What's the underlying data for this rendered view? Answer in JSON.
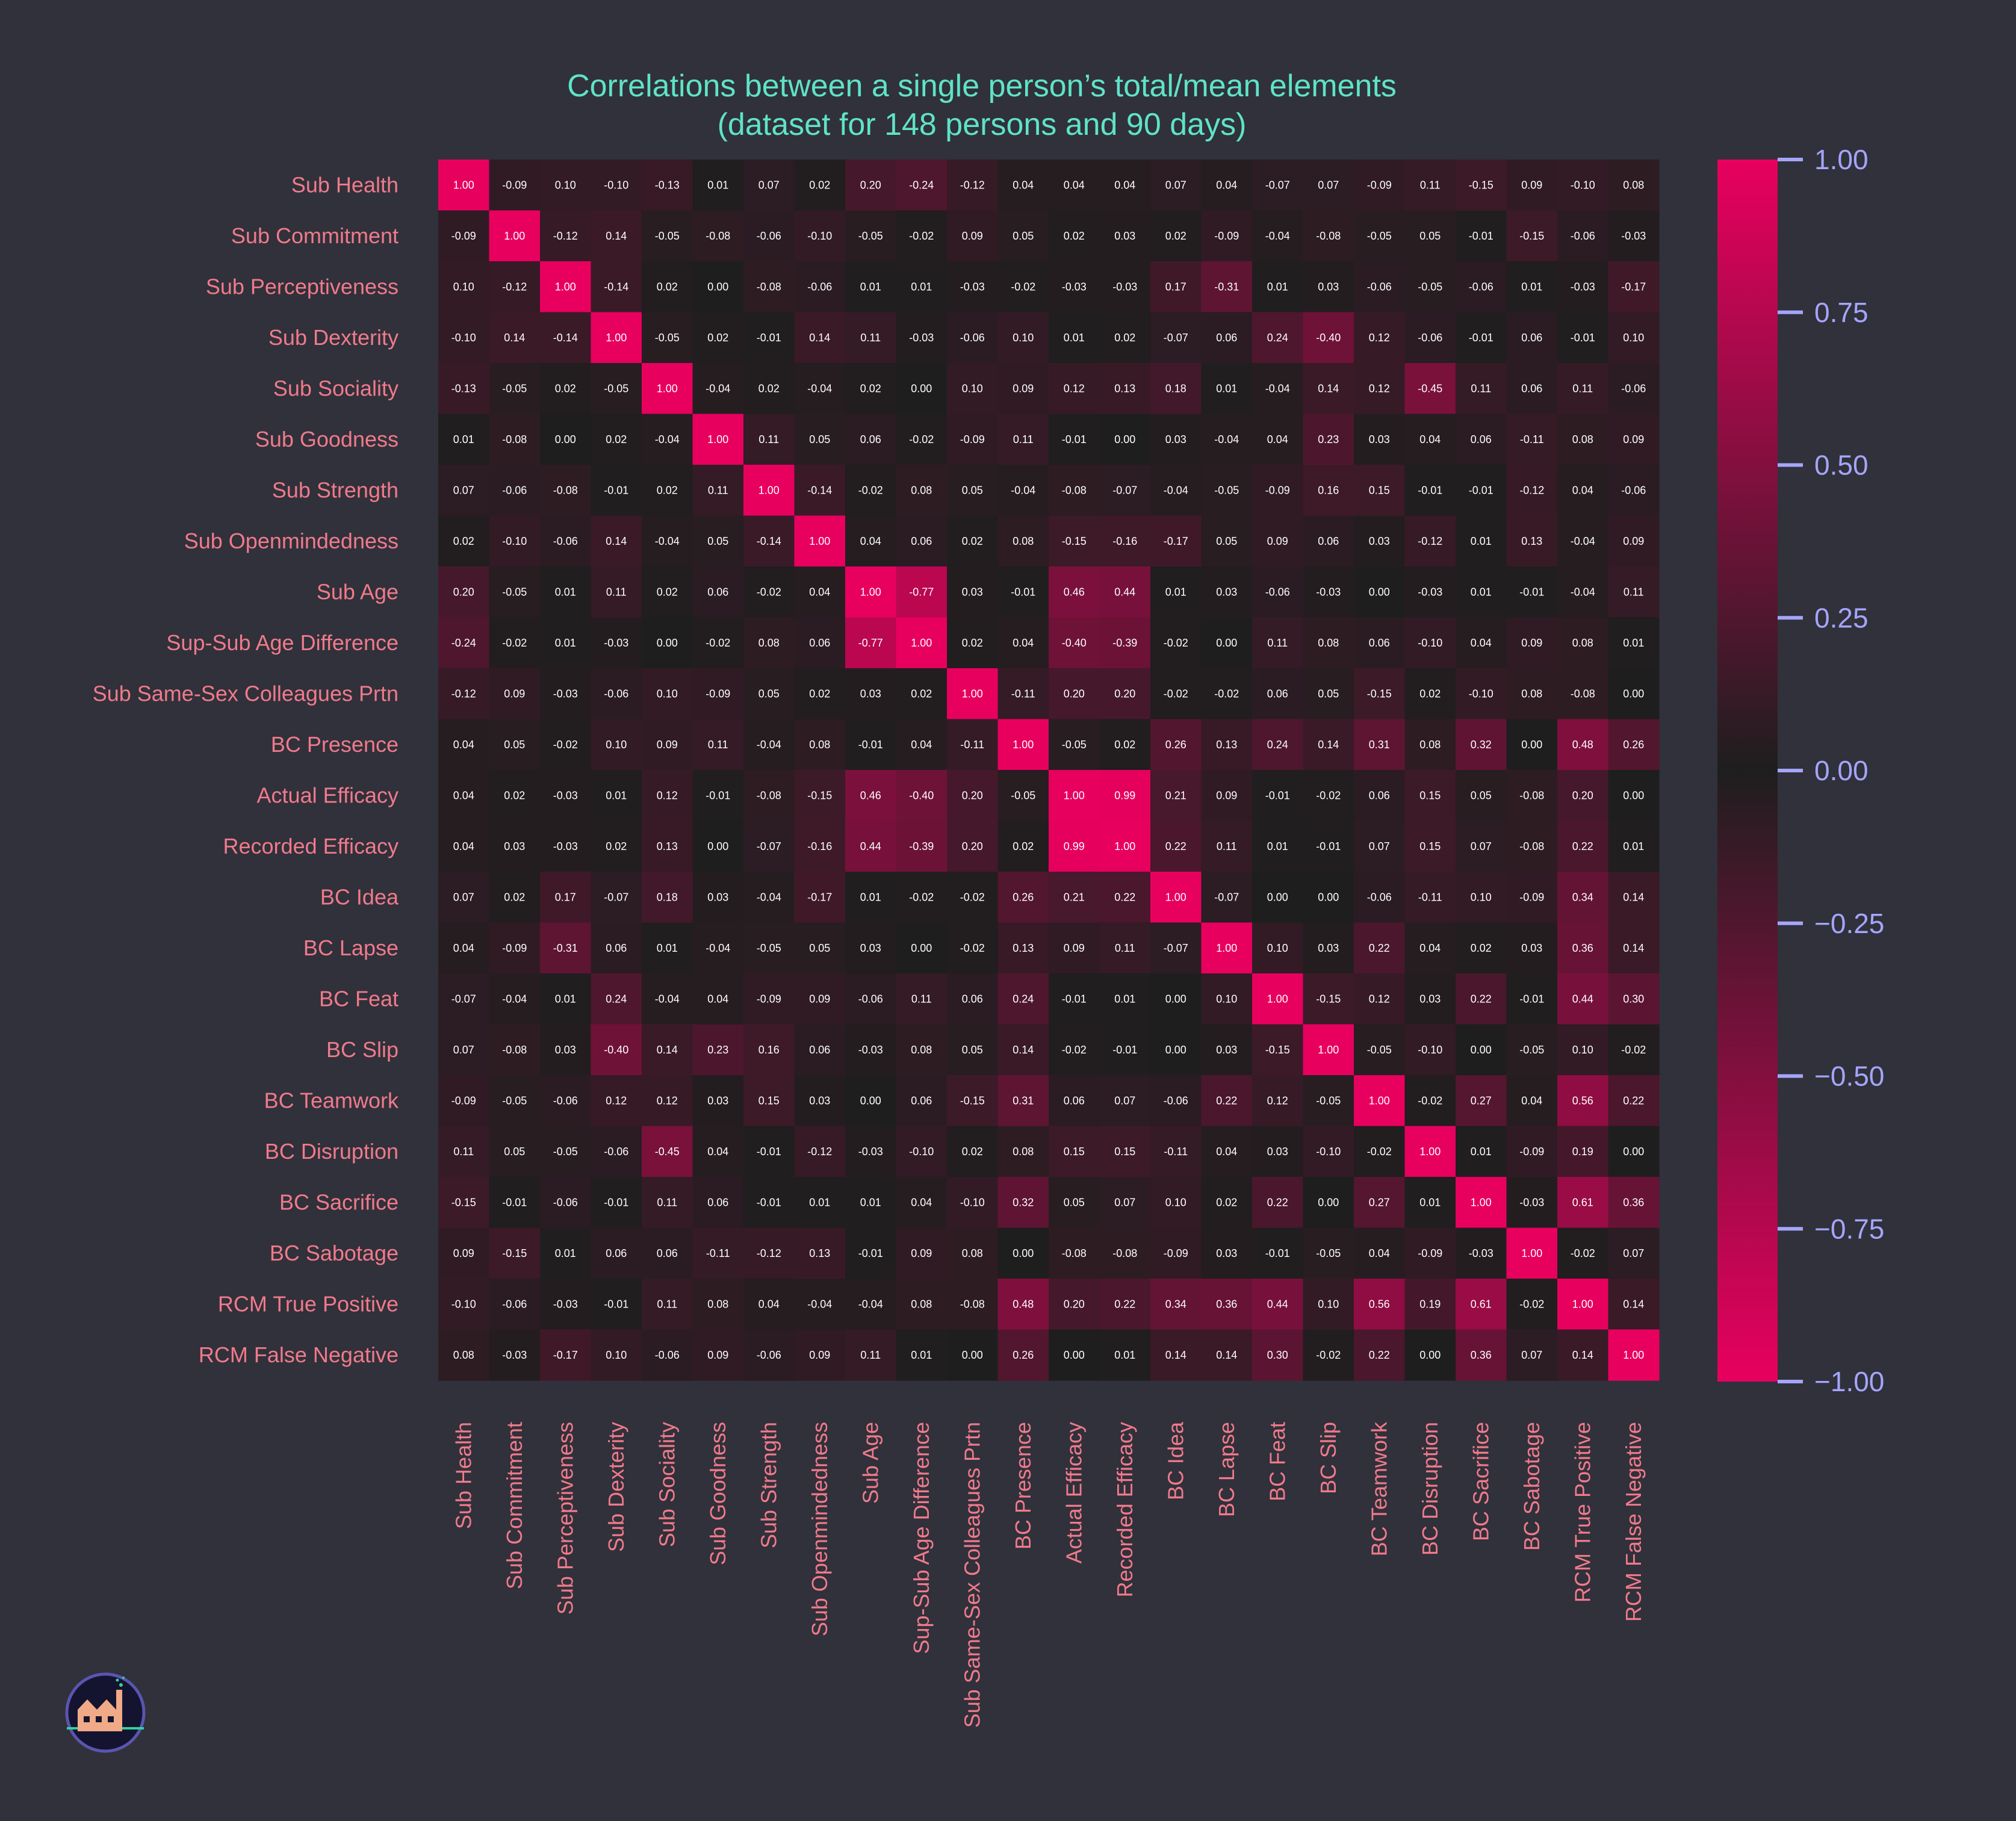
{
  "chart_data": {
    "type": "heatmap",
    "title": "Correlations between a single person’s total/mean elements",
    "subtitle": "(dataset for 148 persons and 90 days)",
    "labels": [
      "Sub Health",
      "Sub Commitment",
      "Sub Perceptiveness",
      "Sub Dexterity",
      "Sub Sociality",
      "Sub Goodness",
      "Sub Strength",
      "Sub Openmindedness",
      "Sub Age",
      "Sup-Sub Age Difference",
      "Sub Same-Sex Colleagues Prtn",
      "BC Presence",
      "Actual Efficacy",
      "Recorded Efficacy",
      "BC Idea",
      "BC Lapse",
      "BC Feat",
      "BC Slip",
      "BC Teamwork",
      "BC Disruption",
      "BC Sacrifice",
      "BC Sabotage",
      "RCM True Positive",
      "RCM False Negative"
    ],
    "matrix": [
      [
        1.0,
        -0.09,
        0.1,
        -0.1,
        -0.13,
        0.01,
        0.07,
        0.02,
        0.2,
        -0.24,
        -0.12,
        0.04,
        0.04,
        0.04,
        0.07,
        0.04,
        -0.07,
        0.07,
        -0.09,
        0.11,
        -0.15,
        0.09,
        -0.1,
        0.08
      ],
      [
        -0.09,
        1.0,
        -0.12,
        0.14,
        -0.05,
        -0.08,
        -0.06,
        -0.1,
        -0.05,
        -0.02,
        0.09,
        0.05,
        0.02,
        0.03,
        0.02,
        -0.09,
        -0.04,
        -0.08,
        -0.05,
        0.05,
        -0.01,
        -0.15,
        -0.06,
        -0.03
      ],
      [
        0.1,
        -0.12,
        1.0,
        -0.14,
        0.02,
        -0.0,
        -0.08,
        -0.06,
        0.01,
        0.01,
        -0.03,
        -0.02,
        -0.03,
        -0.03,
        0.17,
        -0.31,
        0.01,
        0.03,
        -0.06,
        -0.05,
        -0.06,
        0.01,
        -0.03,
        -0.17
      ],
      [
        -0.1,
        0.14,
        -0.14,
        1.0,
        -0.05,
        0.02,
        -0.01,
        0.14,
        0.11,
        -0.03,
        -0.06,
        0.1,
        0.01,
        0.02,
        -0.07,
        0.06,
        0.24,
        -0.4,
        0.12,
        -0.06,
        -0.01,
        0.06,
        -0.01,
        0.1
      ],
      [
        -0.13,
        -0.05,
        0.02,
        -0.05,
        1.0,
        -0.04,
        0.02,
        -0.04,
        0.02,
        0.0,
        0.1,
        0.09,
        0.12,
        0.13,
        0.18,
        0.01,
        -0.04,
        0.14,
        0.12,
        -0.45,
        0.11,
        0.06,
        0.11,
        -0.06
      ],
      [
        0.01,
        -0.08,
        -0.0,
        0.02,
        -0.04,
        1.0,
        0.11,
        0.05,
        0.06,
        -0.02,
        -0.09,
        0.11,
        -0.01,
        -0.0,
        0.03,
        -0.04,
        0.04,
        0.23,
        0.03,
        0.04,
        0.06,
        -0.11,
        0.08,
        0.09
      ],
      [
        0.07,
        -0.06,
        -0.08,
        -0.01,
        0.02,
        0.11,
        1.0,
        -0.14,
        -0.02,
        0.08,
        0.05,
        -0.04,
        -0.08,
        -0.07,
        -0.04,
        -0.05,
        -0.09,
        0.16,
        0.15,
        -0.01,
        -0.01,
        -0.12,
        0.04,
        -0.06
      ],
      [
        0.02,
        -0.1,
        -0.06,
        0.14,
        -0.04,
        0.05,
        -0.14,
        1.0,
        0.04,
        0.06,
        0.02,
        0.08,
        -0.15,
        -0.16,
        -0.17,
        0.05,
        0.09,
        0.06,
        0.03,
        -0.12,
        0.01,
        0.13,
        -0.04,
        0.09
      ],
      [
        0.2,
        -0.05,
        0.01,
        0.11,
        0.02,
        0.06,
        -0.02,
        0.04,
        1.0,
        -0.77,
        0.03,
        -0.01,
        0.46,
        0.44,
        0.01,
        0.03,
        -0.06,
        -0.03,
        -0.0,
        -0.03,
        0.01,
        -0.01,
        -0.04,
        0.11
      ],
      [
        -0.24,
        -0.02,
        0.01,
        -0.03,
        0.0,
        -0.02,
        0.08,
        0.06,
        -0.77,
        1.0,
        0.02,
        0.04,
        -0.4,
        -0.39,
        -0.02,
        -0.0,
        0.11,
        0.08,
        0.06,
        -0.1,
        0.04,
        0.09,
        0.08,
        0.01
      ],
      [
        -0.12,
        0.09,
        -0.03,
        -0.06,
        0.1,
        -0.09,
        0.05,
        0.02,
        0.03,
        0.02,
        1.0,
        -0.11,
        0.2,
        0.2,
        -0.02,
        -0.02,
        0.06,
        0.05,
        -0.15,
        0.02,
        -0.1,
        0.08,
        -0.08,
        -0.0
      ],
      [
        0.04,
        0.05,
        -0.02,
        0.1,
        0.09,
        0.11,
        -0.04,
        0.08,
        -0.01,
        0.04,
        -0.11,
        1.0,
        -0.05,
        0.02,
        0.26,
        0.13,
        0.24,
        0.14,
        0.31,
        0.08,
        0.32,
        -0.0,
        0.48,
        0.26
      ],
      [
        0.04,
        0.02,
        -0.03,
        0.01,
        0.12,
        -0.01,
        -0.08,
        -0.15,
        0.46,
        -0.4,
        0.2,
        -0.05,
        1.0,
        0.99,
        0.21,
        0.09,
        -0.01,
        -0.02,
        0.06,
        0.15,
        0.05,
        -0.08,
        0.2,
        0.0
      ],
      [
        0.04,
        0.03,
        -0.03,
        0.02,
        0.13,
        -0.0,
        -0.07,
        -0.16,
        0.44,
        -0.39,
        0.2,
        0.02,
        0.99,
        1.0,
        0.22,
        0.11,
        0.01,
        -0.01,
        0.07,
        0.15,
        0.07,
        -0.08,
        0.22,
        0.01
      ],
      [
        0.07,
        0.02,
        0.17,
        -0.07,
        0.18,
        0.03,
        -0.04,
        -0.17,
        0.01,
        -0.02,
        -0.02,
        0.26,
        0.21,
        0.22,
        1.0,
        -0.07,
        0.0,
        -0.0,
        -0.06,
        -0.11,
        0.1,
        -0.09,
        0.34,
        0.14
      ],
      [
        0.04,
        -0.09,
        -0.31,
        0.06,
        0.01,
        -0.04,
        -0.05,
        0.05,
        0.03,
        -0.0,
        -0.02,
        0.13,
        0.09,
        0.11,
        -0.07,
        1.0,
        0.1,
        0.03,
        0.22,
        0.04,
        0.02,
        0.03,
        0.36,
        0.14
      ],
      [
        -0.07,
        -0.04,
        0.01,
        0.24,
        -0.04,
        0.04,
        -0.09,
        0.09,
        -0.06,
        0.11,
        0.06,
        0.24,
        -0.01,
        0.01,
        0.0,
        0.1,
        1.0,
        -0.15,
        0.12,
        0.03,
        0.22,
        -0.01,
        0.44,
        0.3
      ],
      [
        0.07,
        -0.08,
        0.03,
        -0.4,
        0.14,
        0.23,
        0.16,
        0.06,
        -0.03,
        0.08,
        0.05,
        0.14,
        -0.02,
        -0.01,
        -0.0,
        0.03,
        -0.15,
        1.0,
        -0.05,
        -0.1,
        0.0,
        -0.05,
        0.1,
        -0.02
      ],
      [
        -0.09,
        -0.05,
        -0.06,
        0.12,
        0.12,
        0.03,
        0.15,
        0.03,
        -0.0,
        0.06,
        -0.15,
        0.31,
        0.06,
        0.07,
        -0.06,
        0.22,
        0.12,
        -0.05,
        1.0,
        -0.02,
        0.27,
        0.04,
        0.56,
        0.22
      ],
      [
        0.11,
        0.05,
        -0.05,
        -0.06,
        -0.45,
        0.04,
        -0.01,
        -0.12,
        -0.03,
        -0.1,
        0.02,
        0.08,
        0.15,
        0.15,
        -0.11,
        0.04,
        0.03,
        -0.1,
        -0.02,
        1.0,
        0.01,
        -0.09,
        0.19,
        0.0
      ],
      [
        -0.15,
        -0.01,
        -0.06,
        -0.01,
        0.11,
        0.06,
        -0.01,
        0.01,
        0.01,
        0.04,
        -0.1,
        0.32,
        0.05,
        0.07,
        0.1,
        0.02,
        0.22,
        0.0,
        0.27,
        0.01,
        1.0,
        -0.03,
        0.61,
        0.36
      ],
      [
        0.09,
        -0.15,
        0.01,
        0.06,
        0.06,
        -0.11,
        -0.12,
        0.13,
        -0.01,
        0.09,
        0.08,
        -0.0,
        -0.08,
        -0.08,
        -0.09,
        0.03,
        -0.01,
        -0.05,
        0.04,
        -0.09,
        -0.03,
        1.0,
        -0.02,
        0.07
      ],
      [
        -0.1,
        -0.06,
        -0.03,
        -0.01,
        0.11,
        0.08,
        0.04,
        -0.04,
        -0.04,
        0.08,
        -0.08,
        0.48,
        0.2,
        0.22,
        0.34,
        0.36,
        0.44,
        0.1,
        0.56,
        0.19,
        0.61,
        -0.02,
        1.0,
        0.14
      ],
      [
        0.08,
        -0.03,
        -0.17,
        0.1,
        -0.06,
        0.09,
        -0.06,
        0.09,
        0.11,
        0.01,
        -0.0,
        0.26,
        0.0,
        0.01,
        0.14,
        0.14,
        0.3,
        -0.02,
        0.22,
        0.0,
        0.36,
        0.07,
        0.14,
        1.0
      ]
    ],
    "colorbar": {
      "min": -1.0,
      "max": 1.0,
      "ticks": [
        "1.00",
        "0.75",
        "0.50",
        "0.25",
        "0.00",
        "−0.25",
        "−0.50",
        "−0.75",
        "−1.00"
      ],
      "colormap": "diverging: #e8005f at ±1, #1e1e1e at 0"
    }
  },
  "colors": {
    "background": "#30313a",
    "title": "#5fe3c8",
    "labels": "#f07a8c",
    "colorbar_ticks": "#a5a5ff",
    "extreme": "#e8005f",
    "center": "#1e1e1e"
  },
  "logo": {
    "icon": "factory-logo-icon"
  }
}
